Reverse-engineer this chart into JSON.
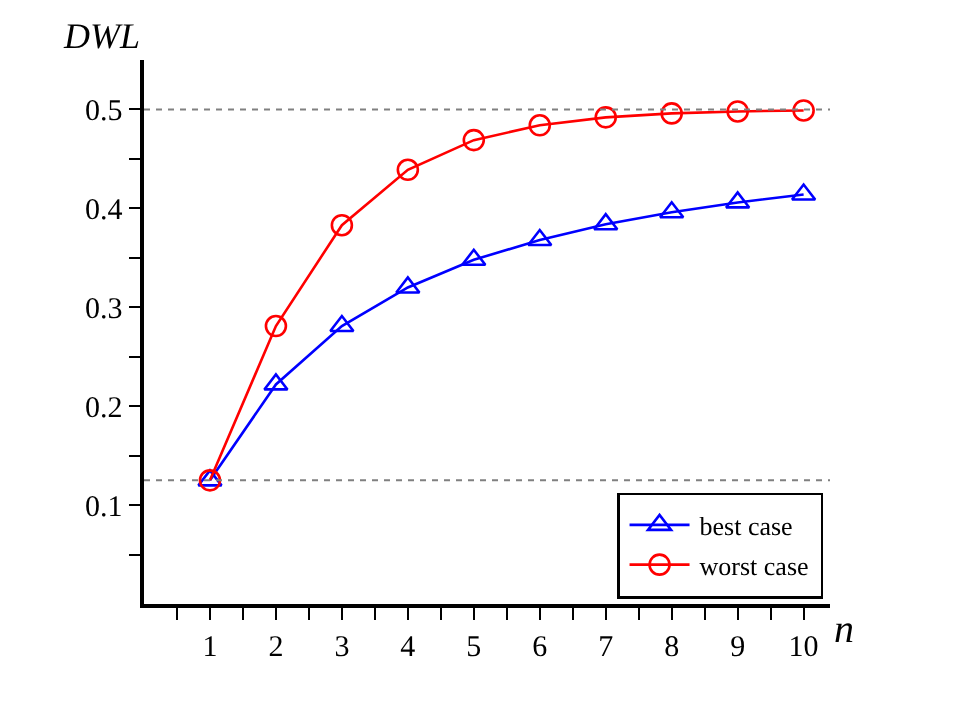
{
  "chart_data": {
    "type": "line",
    "xlabel": "n",
    "ylabel": "DWL",
    "x": [
      1,
      2,
      3,
      4,
      5,
      6,
      7,
      8,
      9,
      10
    ],
    "series": [
      {
        "name": "best case",
        "color": "#0000ff",
        "marker": "triangle",
        "values": [
          0.125,
          0.222,
          0.281,
          0.32,
          0.348,
          0.368,
          0.384,
          0.396,
          0.406,
          0.414
        ]
      },
      {
        "name": "worst case",
        "color": "#ff0000",
        "marker": "circle",
        "values": [
          0.125,
          0.281,
          0.383,
          0.439,
          0.469,
          0.484,
          0.492,
          0.496,
          0.498,
          0.499
        ]
      }
    ],
    "xlim": [
      0,
      10.4
    ],
    "ylim": [
      0,
      0.55
    ],
    "xticks": [
      {
        "value": 0.5,
        "label": null
      },
      1,
      {
        "value": 1.5,
        "label": null
      },
      2,
      {
        "value": 2.5,
        "label": null
      },
      3,
      {
        "value": 3.5,
        "label": null
      },
      4,
      {
        "value": 4.5,
        "label": null
      },
      5,
      {
        "value": 5.5,
        "label": null
      },
      6,
      {
        "value": 6.5,
        "label": null
      },
      7,
      {
        "value": 7.5,
        "label": null
      },
      8,
      {
        "value": 8.5,
        "label": null
      },
      9,
      {
        "value": 9.5,
        "label": null
      },
      10
    ],
    "yticks": [
      {
        "value": 0.05,
        "label": null
      },
      0.1,
      {
        "value": 0.15,
        "label": null
      },
      0.2,
      {
        "value": 0.25,
        "label": null
      },
      0.3,
      {
        "value": 0.35,
        "label": null
      },
      0.4,
      {
        "value": 0.45,
        "label": null
      },
      0.5
    ],
    "ref_lines": [
      {
        "axis": "y",
        "value": 0.5,
        "color": "#808080",
        "line_style": "dotted"
      },
      {
        "axis": "y",
        "value": 0.125,
        "color": "#808080",
        "line_style": "dotted"
      }
    ],
    "legend": "bottom right"
  }
}
